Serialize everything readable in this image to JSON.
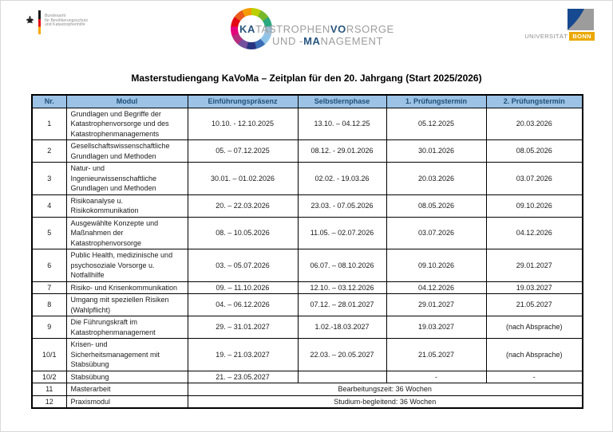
{
  "page": {
    "title": "Masterstudiengang KaVoMa – Zeitplan für den 20. Jahrgang (Start 2025/2026)"
  },
  "colors": {
    "header_bg": "#9cc3e5",
    "header_text": "#1f4e79",
    "kavoma_blue": "#29557e",
    "kavoma_gray": "#9d9d9c",
    "bonn_gold": "#eba900",
    "bonn_blue": "#16498f",
    "bonn_gray": "#9c9c9c"
  },
  "logos": {
    "bbk": {
      "line1": "Bundesamt",
      "line2": "für Bevölkerungsschutz",
      "line3": "und Katastrophenhilfe"
    },
    "kavoma": {
      "ring_colors": [
        "#bccf00",
        "#76b82a",
        "#2ca87f",
        "#9fbfd8",
        "#8fc4e9",
        "#3b6db5",
        "#273480",
        "#744f9e",
        "#b52d7d",
        "#e5007d",
        "#e30613",
        "#ea5b1c",
        "#f59c00"
      ],
      "line1": [
        {
          "t": "KA",
          "bold": true
        },
        {
          "t": "TASTROPHEN",
          "bold": false
        },
        {
          "t": "VO",
          "bold": true
        },
        {
          "t": "RSORGE",
          "bold": false
        }
      ],
      "line2": [
        {
          "t": "UND -",
          "bold": false
        },
        {
          "t": "MA",
          "bold": true
        },
        {
          "t": "NAGEMENT",
          "bold": false
        }
      ]
    },
    "uni_bonn": {
      "name": "UNIVERSITÄT",
      "city": "BONN"
    }
  },
  "table": {
    "headers": [
      "Nr.",
      "Modul",
      "Einführungspräsenz",
      "Selbstlernphase",
      "1. Prüfungstermin",
      "2. Prüfungstermin"
    ],
    "rows": [
      {
        "nr": "1",
        "modul": "Grundlagen und Begriffe der Katastrophenvorsorge und des Katastrophenmanagements",
        "einfuehrung": "10.10. - 12.10.2025",
        "selbstlern": "13.10. – 04.12.25",
        "p1": "05.12.2025",
        "p2": "20.03.2026"
      },
      {
        "nr": "2",
        "modul": "Gesellschaftswissenschaftliche Grundlagen und Methoden",
        "einfuehrung": "05. – 07.12.2025",
        "selbstlern": "08.12. - 29.01.2026",
        "p1": "30.01.2026",
        "p2": "08.05.2026"
      },
      {
        "nr": "3",
        "modul": "Natur- und Ingenieurwissenschaftliche Grundlagen und Methoden",
        "einfuehrung": "30.01. – 01.02.2026",
        "selbstlern": "02.02. - 19.03.26",
        "p1": "20.03.2026",
        "p2": "03.07.2026"
      },
      {
        "nr": "4",
        "modul": "Risikoanalyse u. Risikokommunikation",
        "einfuehrung": "20. – 22.03.2026",
        "selbstlern": "23.03. - 07.05.2026",
        "p1": "08.05.2026",
        "p2": "09.10.2026"
      },
      {
        "nr": "5",
        "modul": "Ausgewählte Konzepte und Maßnahmen der Katastrophenvorsorge",
        "einfuehrung": "08. – 10.05.2026",
        "selbstlern": "11.05. – 02.07.2026",
        "p1": "03.07.2026",
        "p2": "04.12.2026"
      },
      {
        "nr": "6",
        "modul": "Public Health, medizinische und psychosoziale Vorsorge u. Notfallhilfe",
        "einfuehrung": "03. – 05.07.2026",
        "selbstlern": "06.07. – 08.10.2026",
        "p1": "09.10.2026",
        "p2": "29.01.2027"
      },
      {
        "nr": "7",
        "modul": "Risiko- und Krisenkommunikation",
        "einfuehrung": "09. – 11.10.2026",
        "selbstlern": "12.10. – 03.12.2026",
        "p1": "04.12.2026",
        "p2": "19.03.2027"
      },
      {
        "nr": "8",
        "modul": "Umgang mit speziellen Risiken (Wahlpflicht)",
        "einfuehrung": "04. – 06.12.2026",
        "selbstlern": "07.12. – 28.01.2027",
        "p1": "29.01.2027",
        "p2": "21.05.2027"
      },
      {
        "nr": "9",
        "modul": "Die Führungskraft im Katastrophenmanagement",
        "einfuehrung": "29. – 31.01.2027",
        "selbstlern": "1.02.-18.03.2027",
        "p1": "19.03.2027",
        "p2": "(nach Absprache)"
      },
      {
        "nr": "10/1",
        "modul": "Krisen- und Sicherheitsmanagement mit Stabsübung",
        "einfuehrung": "19. – 21.03.2027",
        "selbstlern": "22.03. – 20.05.2027",
        "p1": "21.05.2027",
        "p2": "(nach Absprache)"
      },
      {
        "nr": "10/2",
        "modul": "Stabsübung",
        "einfuehrung": "21. – 23.05.2027",
        "selbstlern": "",
        "p1": "-",
        "p2": "-"
      },
      {
        "nr": "11",
        "modul": "Masterarbeit",
        "span": "Bearbeitungszeit: 36 Wochen"
      },
      {
        "nr": "12",
        "modul": "Praxismodul",
        "span": "Studium-begleitend: 36 Wochen"
      }
    ]
  }
}
